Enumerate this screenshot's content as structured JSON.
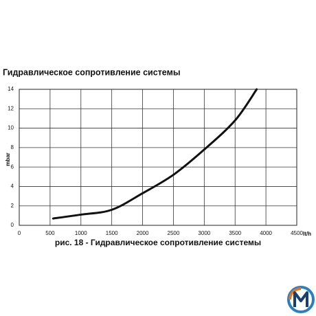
{
  "chart_data": {
    "type": "line",
    "title": "Гидравлическое сопротивление системы",
    "caption": "рис. 18 - Гидравлическое сопротивление системы",
    "y_label": "mbar",
    "x_label": "lt/h",
    "x": [
      550,
      1000,
      1500,
      2000,
      2500,
      3000,
      3500,
      3850
    ],
    "series": [
      {
        "name": "Гидравлическое сопротивление",
        "color": "#111111",
        "values": [
          0.7,
          1.1,
          1.6,
          3.3,
          5.2,
          7.8,
          10.8,
          14
        ]
      }
    ],
    "xlim": [
      0,
      4500
    ],
    "xticks": [
      0,
      500,
      1000,
      1500,
      2000,
      2500,
      3000,
      3500,
      4000,
      4500
    ],
    "ylim": [
      0,
      14
    ],
    "yticks": [
      0,
      2,
      4,
      6,
      8,
      10,
      12,
      14
    ],
    "grid": true
  }
}
